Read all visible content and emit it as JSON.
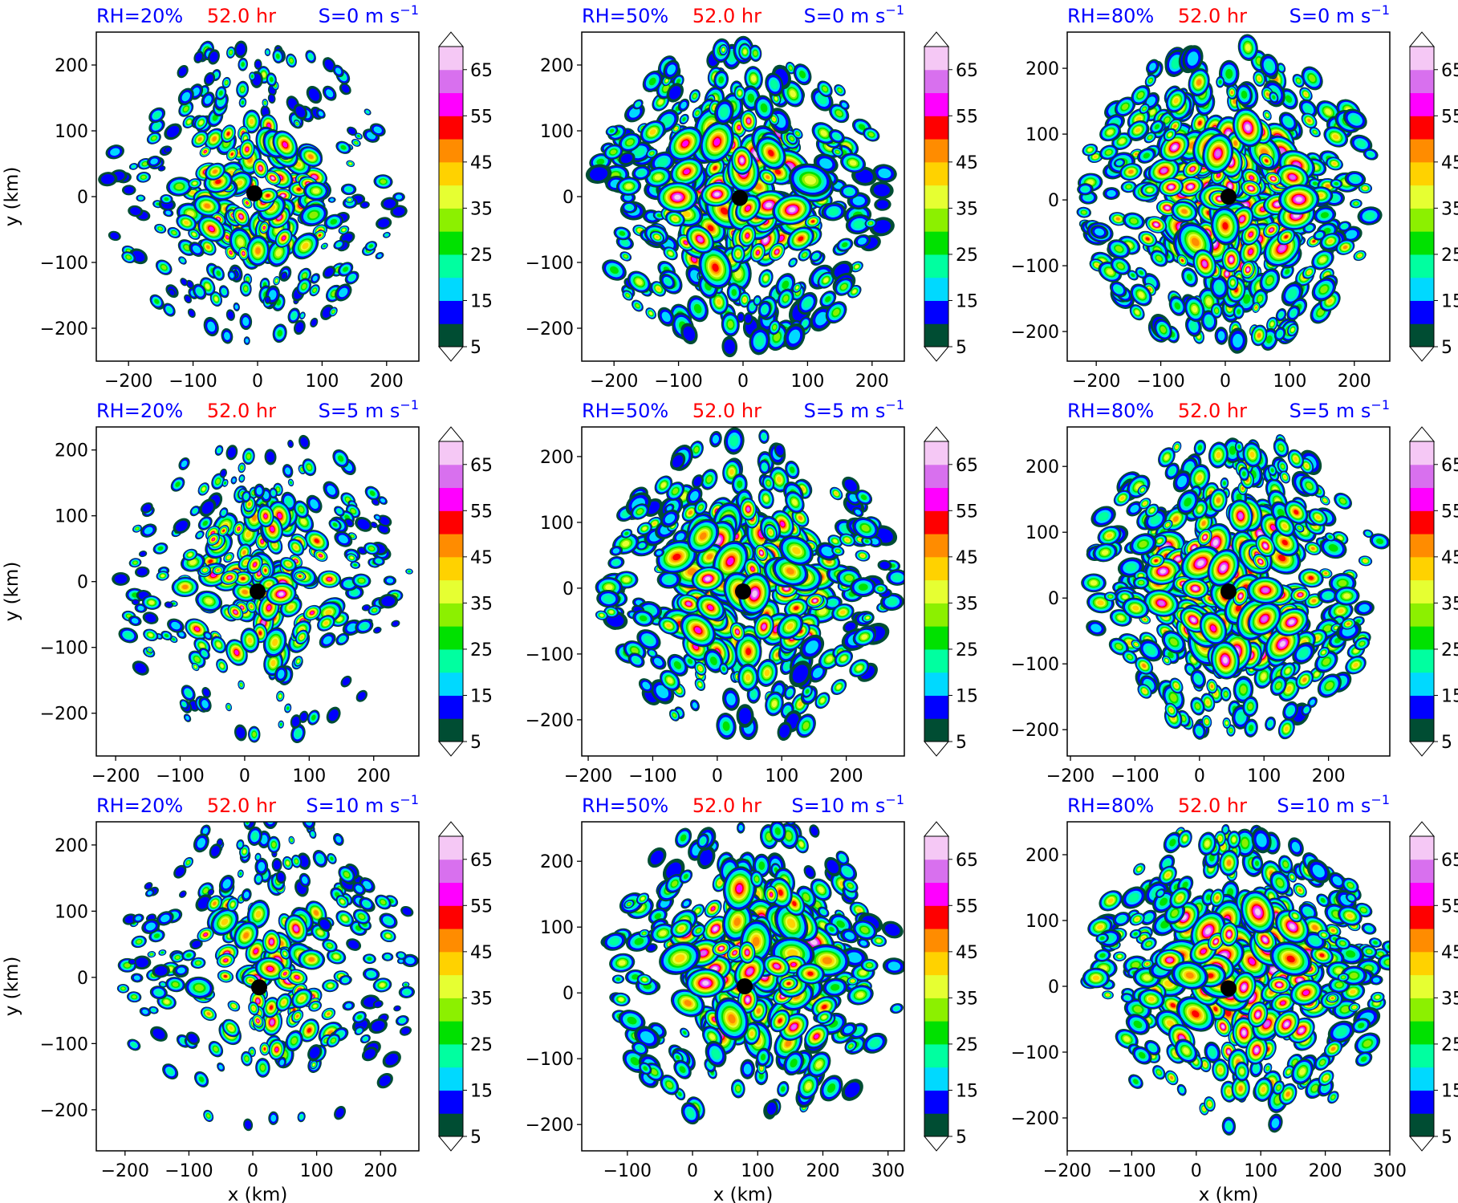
{
  "header_colors": {
    "params": "#0000ff",
    "time": "#ff0000"
  },
  "colorbar": {
    "levels": [
      5,
      10,
      15,
      20,
      25,
      30,
      35,
      40,
      45,
      50,
      55,
      60,
      65,
      70
    ],
    "ticks": [
      "5",
      "15",
      "25",
      "35",
      "45",
      "55",
      "65"
    ],
    "colors": [
      "#004d33",
      "#0000ff",
      "#00d9ff",
      "#00ffa0",
      "#00e100",
      "#8cf000",
      "#e6ff32",
      "#ffd200",
      "#ff8c00",
      "#ff0000",
      "#ff00ff",
      "#d870ee",
      "#f5c8f5"
    ],
    "extend": "both"
  },
  "axis_labels": {
    "x": "x (km)",
    "y": "y (km)"
  },
  "chart_data": [
    {
      "type": "heatmap",
      "title_left": "RH=20%",
      "title_center": "52.0 hr",
      "title_right": "S=0 m s",
      "center": [
        -5,
        5
      ],
      "xlim": [
        -250,
        250
      ],
      "ylim": [
        -250,
        250
      ],
      "xticks": [
        -200,
        -100,
        0,
        100,
        200
      ],
      "yticks": [
        -200,
        -100,
        0,
        100,
        200
      ],
      "ylabel": "y (km)",
      "xlabel": ""
    },
    {
      "type": "heatmap",
      "title_left": "RH=50%",
      "title_center": "52.0 hr",
      "title_right": "S=0 m s",
      "center": [
        -5,
        -2
      ],
      "xlim": [
        -250,
        250
      ],
      "ylim": [
        -250,
        250
      ],
      "xticks": [
        -200,
        -100,
        0,
        100,
        200
      ],
      "yticks": [
        -200,
        -100,
        0,
        100,
        200
      ],
      "ylabel": "",
      "xlabel": ""
    },
    {
      "type": "heatmap",
      "title_left": "RH=80%",
      "title_center": "52.0 hr",
      "title_right": "S=0 m s",
      "center": [
        5,
        5
      ],
      "xlim": [
        -245,
        255
      ],
      "ylim": [
        -245,
        255
      ],
      "xticks": [
        -200,
        -100,
        0,
        100,
        200
      ],
      "yticks": [
        -200,
        -100,
        0,
        100,
        200
      ],
      "ylabel": "",
      "xlabel": ""
    },
    {
      "type": "heatmap",
      "title_left": "RH=20%",
      "title_center": "52.0 hr",
      "title_right": "S=5 m s",
      "center": [
        20,
        -15
      ],
      "xlim": [
        -230,
        270
      ],
      "ylim": [
        -265,
        235
      ],
      "xticks": [
        -200,
        -100,
        0,
        100,
        200
      ],
      "yticks": [
        -200,
        -100,
        0,
        100,
        200
      ],
      "ylabel": "y (km)",
      "xlabel": ""
    },
    {
      "type": "heatmap",
      "title_left": "RH=50%",
      "title_center": "52.0 hr",
      "title_right": "S=5 m s",
      "center": [
        40,
        -5
      ],
      "xlim": [
        -210,
        290
      ],
      "ylim": [
        -255,
        245
      ],
      "xticks": [
        -200,
        -100,
        0,
        100,
        200
      ],
      "yticks": [
        -200,
        -100,
        0,
        100,
        200
      ],
      "ylabel": "",
      "xlabel": ""
    },
    {
      "type": "heatmap",
      "title_left": "RH=80%",
      "title_center": "52.0 hr",
      "title_right": "S=5 m s",
      "center": [
        45,
        10
      ],
      "xlim": [
        -205,
        295
      ],
      "ylim": [
        -240,
        260
      ],
      "xticks": [
        -200,
        -100,
        0,
        100,
        200
      ],
      "yticks": [
        -200,
        -100,
        0,
        100,
        200
      ],
      "ylabel": "",
      "xlabel": ""
    },
    {
      "type": "heatmap",
      "title_left": "RH=20%",
      "title_center": "52.0 hr",
      "title_right": "S=10 m s",
      "center": [
        10,
        -15
      ],
      "xlim": [
        -245,
        260
      ],
      "ylim": [
        -262,
        235
      ],
      "xticks": [
        -200,
        -100,
        0,
        100,
        200
      ],
      "yticks": [
        -200,
        -100,
        0,
        100,
        200
      ],
      "ylabel": "y (km)",
      "xlabel": "x (km)"
    },
    {
      "type": "heatmap",
      "title_left": "RH=50%",
      "title_center": "52.0 hr",
      "title_right": "S=10 m s",
      "center": [
        80,
        10
      ],
      "xlim": [
        -170,
        325
      ],
      "ylim": [
        -240,
        260
      ],
      "xticks": [
        -100,
        0,
        100,
        200,
        300
      ],
      "yticks": [
        -200,
        -100,
        0,
        100,
        200
      ],
      "ylabel": "",
      "xlabel": "x (km)"
    },
    {
      "type": "heatmap",
      "title_left": "RH=80%",
      "title_center": "52.0 hr",
      "title_right": "S=10 m s",
      "center": [
        50,
        -3
      ],
      "xlim": [
        -200,
        300
      ],
      "ylim": [
        -250,
        250
      ],
      "xticks": [
        -200,
        -100,
        0,
        100,
        200,
        300
      ],
      "yticks": [
        -200,
        -100,
        0,
        100,
        200
      ],
      "ylabel": "",
      "xlabel": "x (km)"
    }
  ]
}
